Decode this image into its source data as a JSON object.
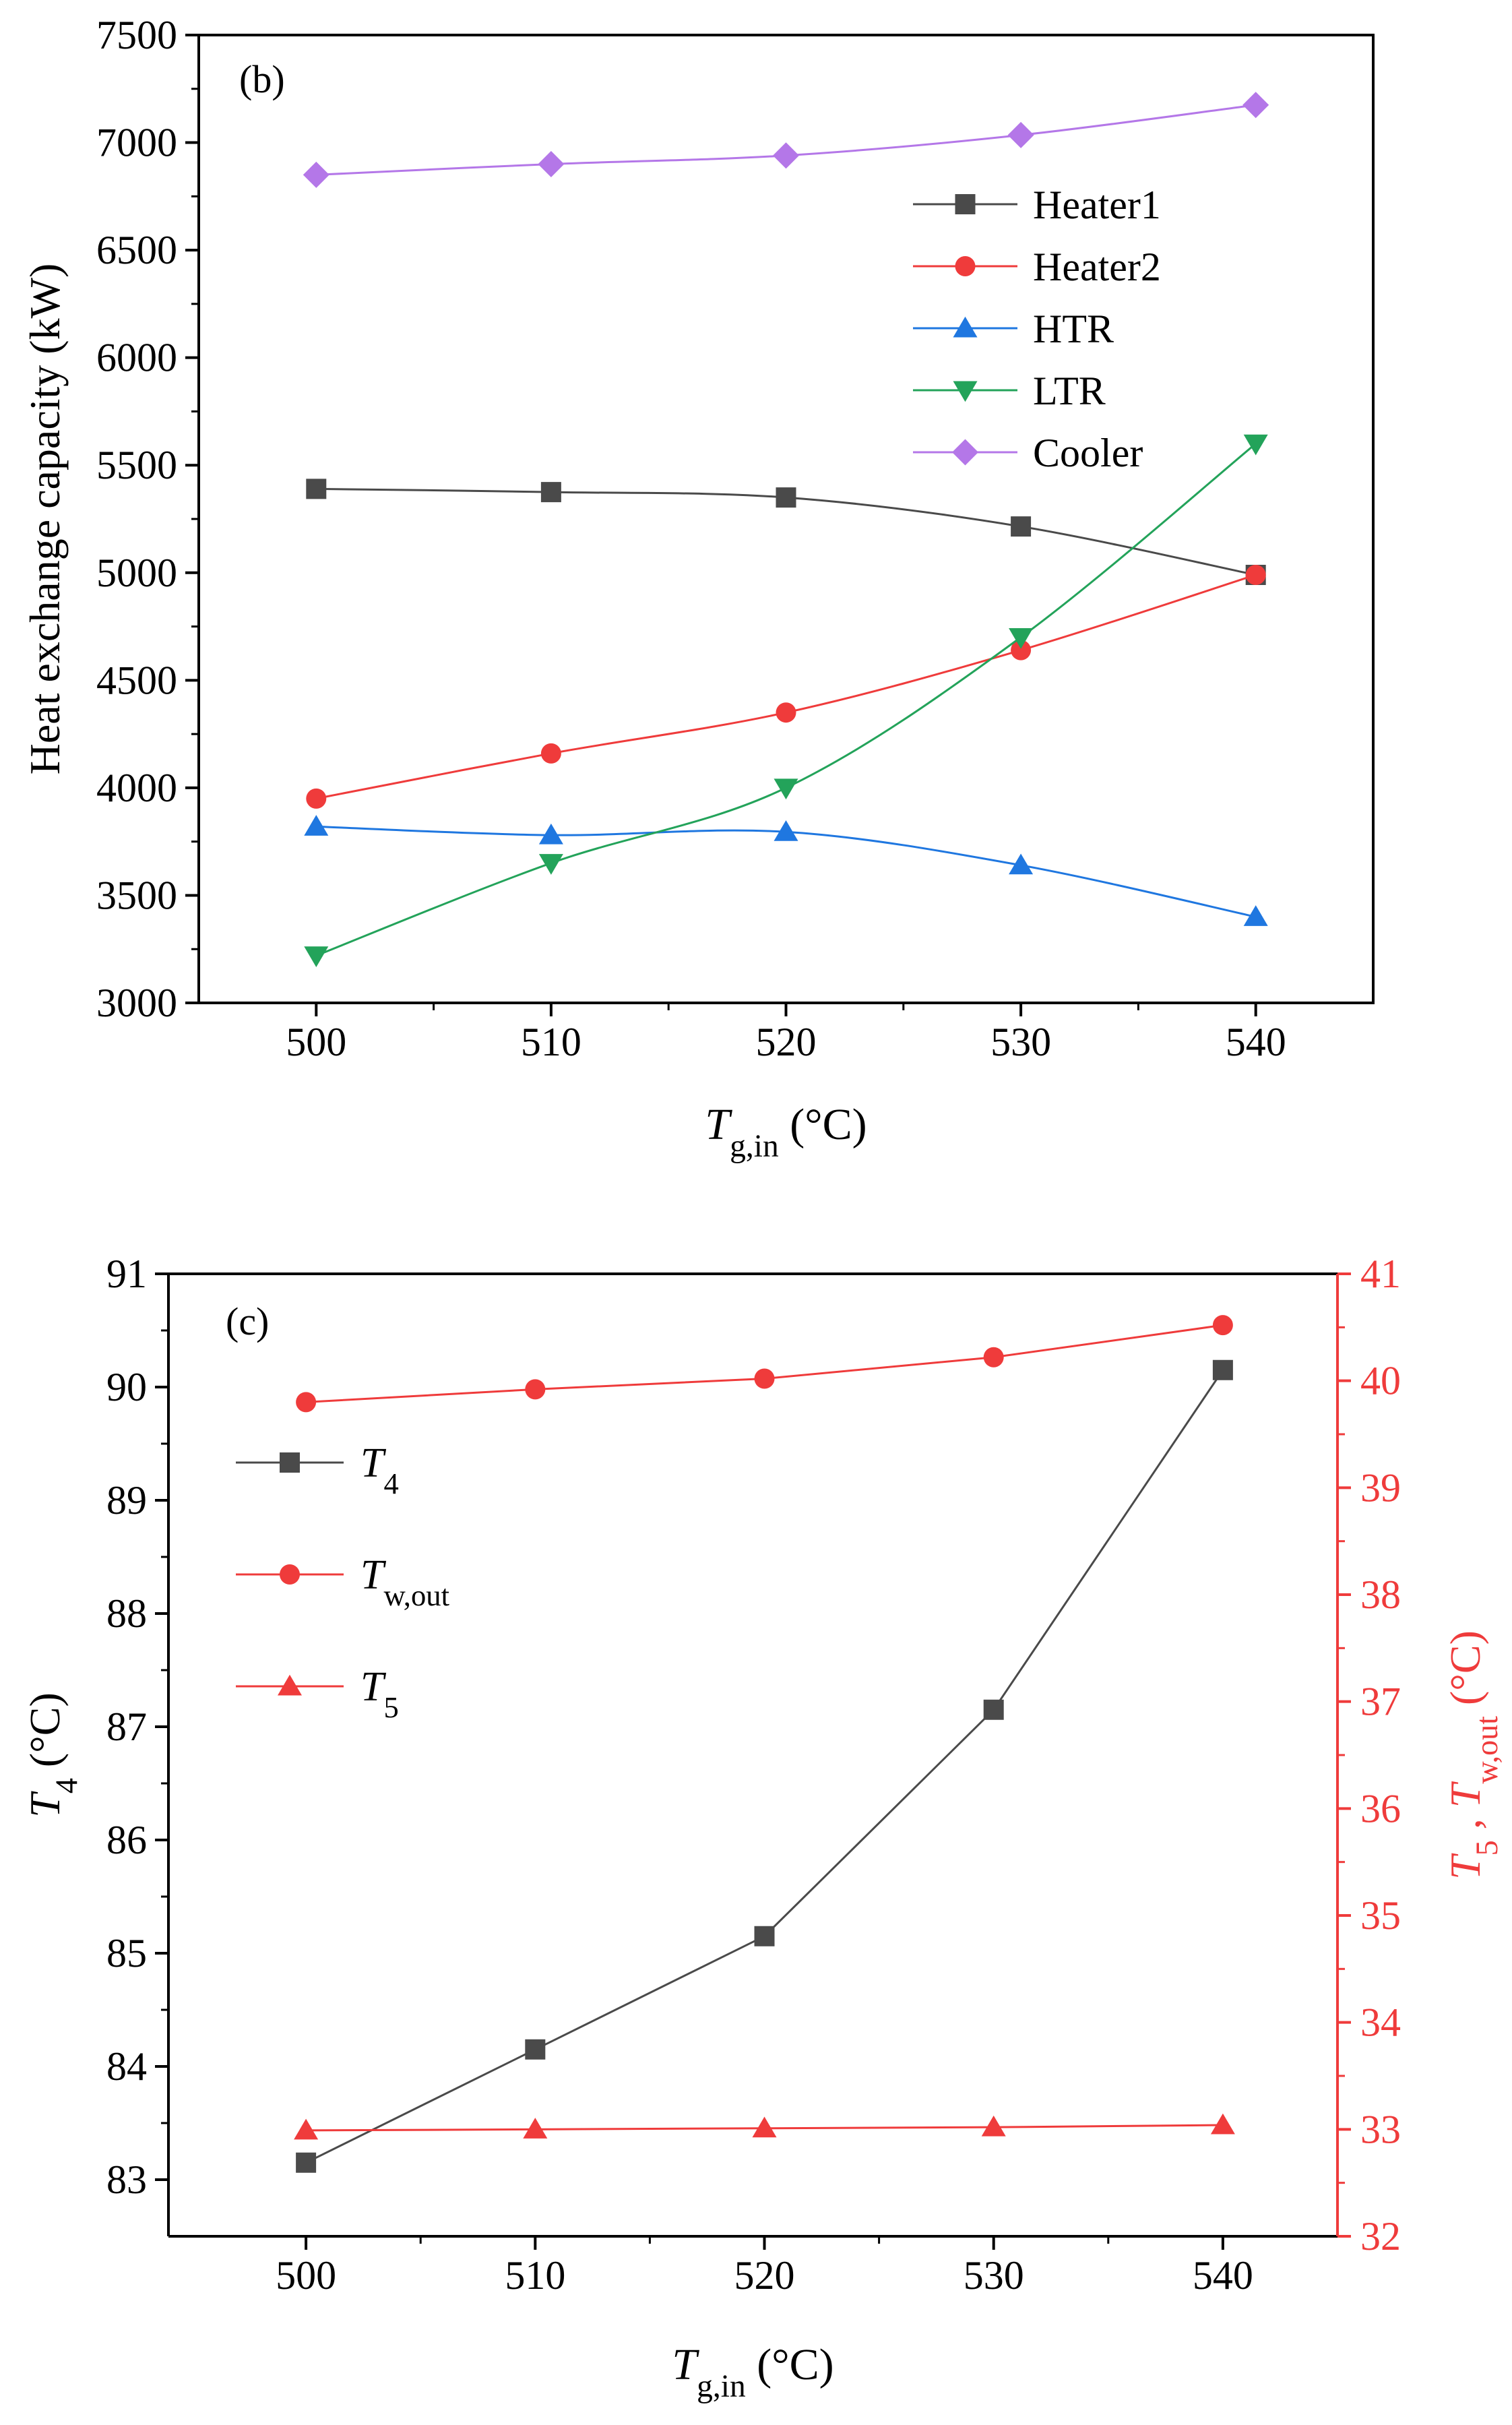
{
  "chart_data": [
    {
      "panel_label": "(b)",
      "type": "line",
      "title": "",
      "xlabel": {
        "main": "T",
        "sub": "g,in",
        "unit": " (°C)"
      },
      "ylabel": "Heat exchange capacity (kW)",
      "x": [
        500,
        510,
        520,
        530,
        540
      ],
      "xlim": [
        495,
        545
      ],
      "ylim": [
        3000,
        7500
      ],
      "xticks": [
        "500",
        "510",
        "520",
        "530",
        "540"
      ],
      "yticks": [
        "3000",
        "3500",
        "4000",
        "4500",
        "5000",
        "5500",
        "6000",
        "6500",
        "7000",
        "7500"
      ],
      "legend_position": "upper-right",
      "series": [
        {
          "name": "Heater1",
          "color": "#4a4a4a",
          "marker": "square",
          "values": [
            5390,
            5375,
            5350,
            5215,
            4990
          ]
        },
        {
          "name": "Heater2",
          "color": "#ef3b3b",
          "marker": "circle",
          "values": [
            3950,
            4160,
            4350,
            4640,
            4990
          ]
        },
        {
          "name": "HTR",
          "color": "#1f77e0",
          "marker": "triangle-up",
          "values": [
            3820,
            3780,
            3795,
            3640,
            3400
          ]
        },
        {
          "name": "LTR",
          "color": "#23a35a",
          "marker": "triangle-down",
          "values": [
            3220,
            3650,
            4000,
            4700,
            5600
          ]
        },
        {
          "name": "Cooler",
          "color": "#b477e8",
          "marker": "diamond",
          "values": [
            6850,
            6900,
            6940,
            7035,
            7175
          ]
        }
      ]
    },
    {
      "panel_label": "(c)",
      "type": "line",
      "title": "",
      "xlabel": {
        "main": "T",
        "sub": "g,in",
        "unit": " (°C)"
      },
      "ylabel_left": {
        "main": "T",
        "sub": "4",
        "unit": " (°C)"
      },
      "ylabel_right": {
        "p1": "T",
        "s1": "5",
        "p2": " , T",
        "s2": "w,out",
        "unit": " (°C)"
      },
      "x": [
        500,
        510,
        520,
        530,
        540
      ],
      "xlim": [
        494,
        545
      ],
      "ylim_left": [
        82.5,
        91
      ],
      "ylim_right": [
        32,
        41
      ],
      "xticks": [
        "500",
        "510",
        "520",
        "530",
        "540"
      ],
      "yticks_left": [
        "83",
        "84",
        "85",
        "86",
        "87",
        "88",
        "89",
        "90",
        "91"
      ],
      "yticks_right": [
        "32",
        "33",
        "34",
        "35",
        "36",
        "37",
        "38",
        "39",
        "40",
        "41"
      ],
      "legend_position": "upper-left",
      "series": [
        {
          "name": "T",
          "sub": "4",
          "axis": "left",
          "color": "#4a4a4a",
          "marker": "square",
          "values": [
            83.15,
            84.15,
            85.15,
            87.15,
            90.15
          ]
        },
        {
          "name": "T",
          "sub": "w,out",
          "axis": "right",
          "color": "#ef3b3b",
          "marker": "circle",
          "values": [
            39.8,
            39.92,
            40.02,
            40.22,
            40.52
          ]
        },
        {
          "name": "T",
          "sub": "5",
          "axis": "right",
          "color": "#ef3b3b",
          "marker": "triangle-up",
          "values": [
            32.99,
            33.0,
            33.01,
            33.02,
            33.04
          ]
        }
      ]
    }
  ],
  "colors": {
    "axis_black": "#000000",
    "axis_red": "#ef3b3b"
  }
}
